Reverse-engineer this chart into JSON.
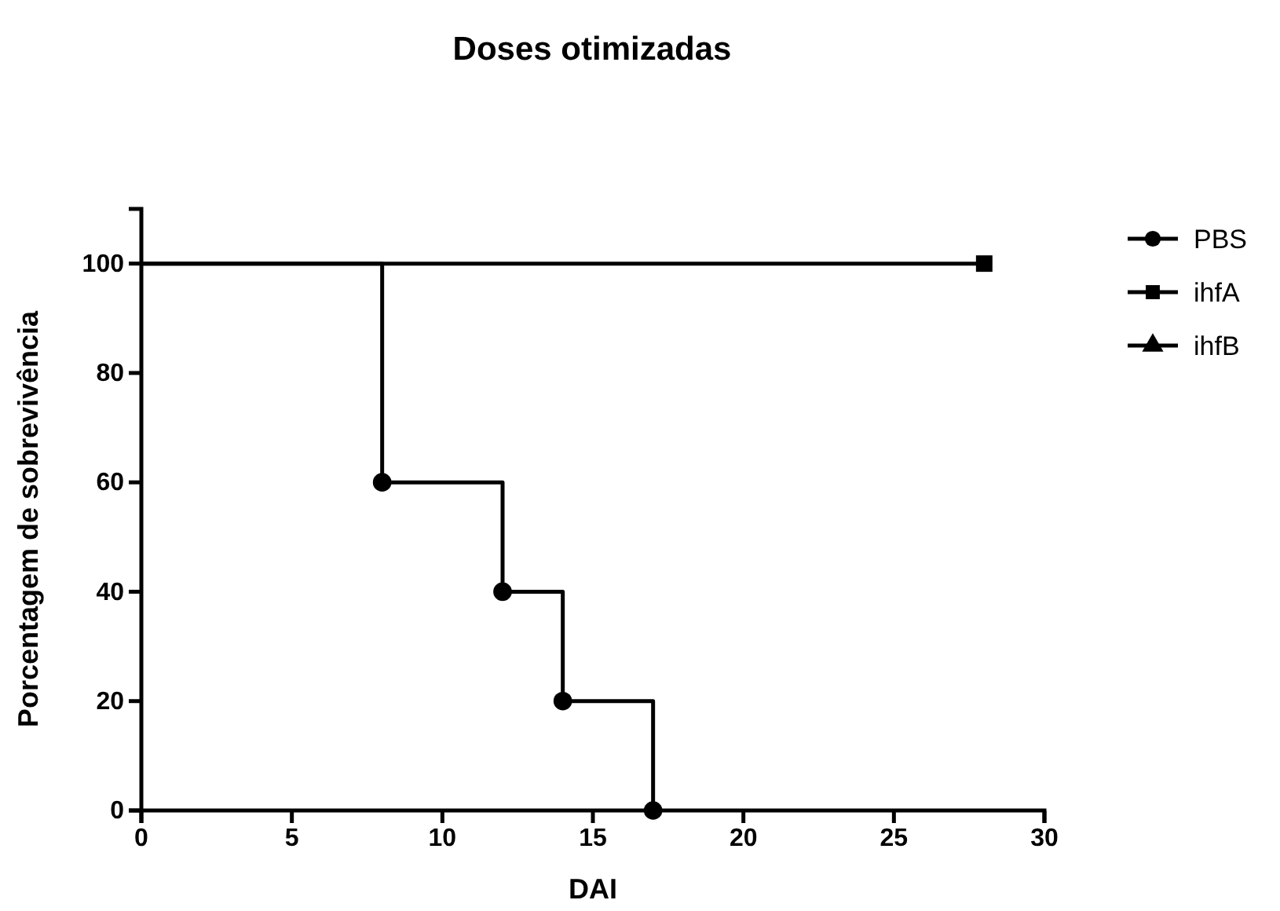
{
  "chart_data": {
    "type": "step",
    "title": "Doses otimizadas",
    "xlabel": "DAI",
    "ylabel": "Porcentagem de sobrevivência",
    "xlim": [
      0,
      30
    ],
    "xticks": [
      0,
      5,
      10,
      15,
      20,
      25,
      30
    ],
    "ylim": [
      0,
      110
    ],
    "yticks": [
      0,
      20,
      40,
      60,
      80,
      100
    ],
    "grid": false,
    "legend": "top right",
    "line_style": "solid",
    "series": [
      {
        "name": "PBS",
        "color": "#000000",
        "marker": "circle",
        "x": [
          0,
          8,
          12,
          14,
          17
        ],
        "values": [
          100,
          60,
          40,
          20,
          0
        ]
      },
      {
        "name": "ihfA",
        "color": "#000000",
        "marker": "square",
        "x": [
          0,
          28
        ],
        "values": [
          100,
          100
        ]
      },
      {
        "name": "ihfB",
        "color": "#000000",
        "marker": "triangle"
      }
    ]
  }
}
